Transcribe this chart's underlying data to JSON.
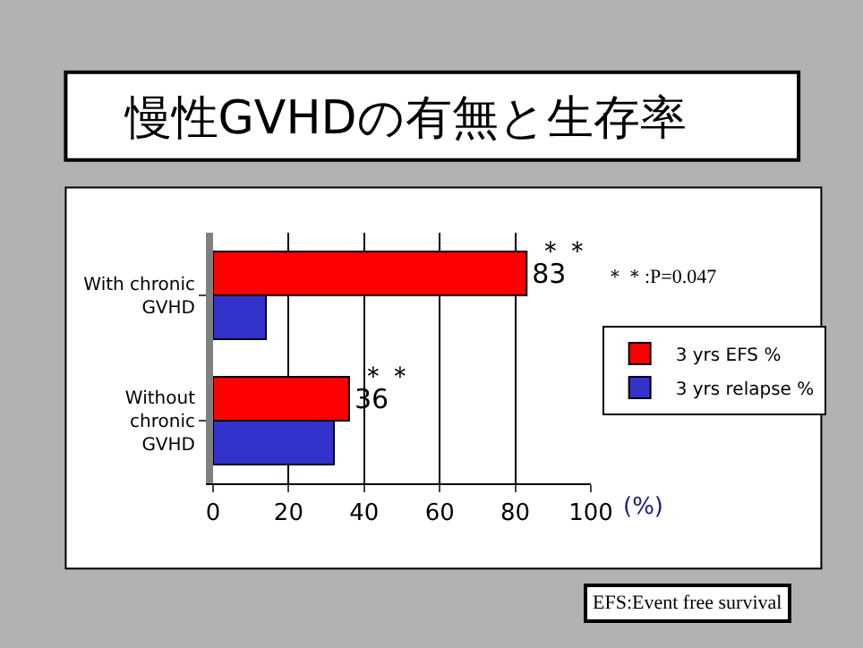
{
  "chart_data": {
    "type": "bar",
    "orientation": "horizontal",
    "title": "慢性GVHDの有無と生存率",
    "xlabel": "(%)",
    "categories": [
      "With chronic\nGVHD",
      "Without\nchronic\nGVHD"
    ],
    "series": [
      {
        "name": "3 yrs EFS %",
        "color": "#ff0000",
        "values": [
          83,
          36
        ],
        "value_labels": [
          "83",
          "36"
        ]
      },
      {
        "name": "3 yrs relapse %",
        "color": "#3333cc",
        "values": [
          14,
          32
        ]
      }
    ],
    "xlim": [
      0,
      100
    ],
    "xticks": [
      0,
      20,
      40,
      60,
      80,
      100
    ],
    "grid": "x",
    "legend": "right",
    "annotations": [
      {
        "text": "＊＊",
        "x": 83,
        "y": "With chronic\nGVHD"
      },
      {
        "text": "＊＊",
        "x": 36,
        "y": "Without\nchronic\nGVHD"
      },
      "＊＊:P=0.047",
      "EFS:Event free survival"
    ]
  }
}
